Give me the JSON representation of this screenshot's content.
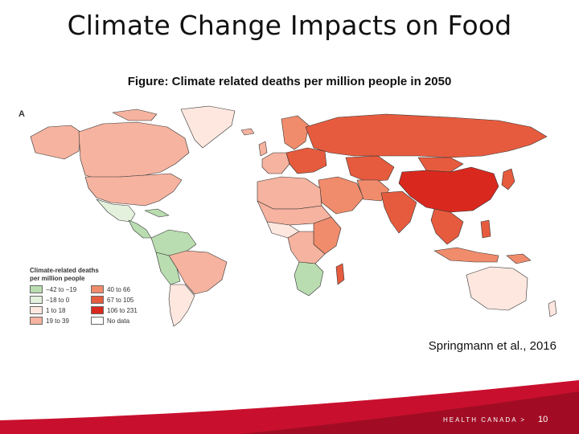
{
  "slide": {
    "title": "Climate Change Impacts on Food",
    "subtitle": "Figure: Climate related deaths per million people in 2050",
    "source": "Springmann et al., 2016",
    "brand": "HEALTH CANADA >",
    "page_number": "10"
  },
  "map": {
    "panel_letter": "A",
    "legend_title_line1": "Climate-related deaths",
    "legend_title_line2": "per million people",
    "legend": [
      {
        "label": "−42 to −19",
        "color": "#b9ddb0"
      },
      {
        "label": "40 to 66",
        "color": "#f08c6c"
      },
      {
        "label": "−18 to 0",
        "color": "#e4f1dd"
      },
      {
        "label": "67 to 105",
        "color": "#e65b3e"
      },
      {
        "label": "1 to 18",
        "color": "#fde7df"
      },
      {
        "label": "106 to 231",
        "color": "#d9291f"
      },
      {
        "label": "19 to 39",
        "color": "#f6b39f"
      },
      {
        "label": "No data",
        "color": "#ffffff"
      }
    ]
  },
  "colors": {
    "accent_red": "#c8102e",
    "dark_red": "#9a0c22"
  }
}
